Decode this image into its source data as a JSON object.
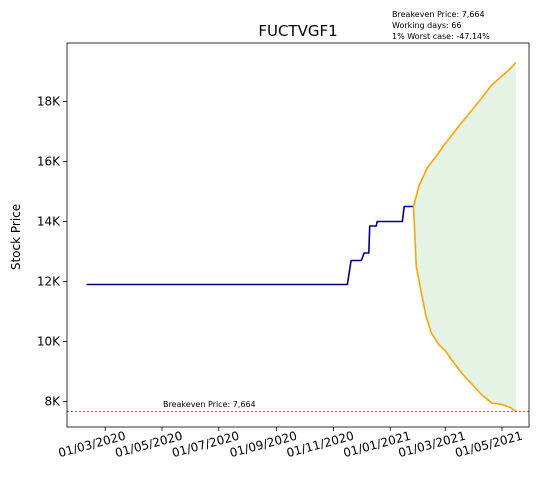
{
  "chart_data": {
    "type": "line",
    "title": "FUCTVGF1",
    "xlabel": "",
    "ylabel": "Stock Price",
    "x_ticks": [
      "01/03/2020",
      "01/05/2020",
      "01/07/2020",
      "01/09/2020",
      "01/11/2020",
      "01/01/2021",
      "01/03/2021",
      "01/05/2021"
    ],
    "y_ticks": [
      "8K",
      "10K",
      "12K",
      "14K",
      "16K",
      "18K"
    ],
    "y_tick_values": [
      8000,
      10000,
      12000,
      14000,
      16000,
      18000
    ],
    "xlim": [
      "2020-01-20",
      "2021-05-30"
    ],
    "ylim": [
      7150,
      19950
    ],
    "grid": false,
    "annotation_lines": [
      "Breakeven Price: 7,664",
      "Working days: 66",
      "1% Worst case: -47.14%"
    ],
    "breakeven": {
      "label": "Breakeven Price: 7,664",
      "value": 7664,
      "color": "#d62728"
    },
    "series": [
      {
        "color": "#000080",
        "points": [
          [
            "2020-02-10",
            11900
          ],
          [
            "2020-11-16",
            11900
          ],
          [
            "2020-11-20",
            12700
          ],
          [
            "2020-12-01",
            12700
          ],
          [
            "2020-12-04",
            12950
          ],
          [
            "2020-12-09",
            12950
          ],
          [
            "2020-12-10",
            13850
          ],
          [
            "2020-12-17",
            13850
          ],
          [
            "2020-12-18",
            14000
          ],
          [
            "2021-01-14",
            14000
          ],
          [
            "2021-01-16",
            14500
          ],
          [
            "2021-01-26",
            14500
          ]
        ]
      },
      {
        "color": "#ffa500",
        "points": [
          [
            "2021-01-26",
            14500
          ],
          [
            "2021-02-01",
            15200
          ],
          [
            "2021-02-10",
            15800
          ],
          [
            "2021-02-20",
            16200
          ],
          [
            "2021-03-01",
            16600
          ],
          [
            "2021-03-10",
            16950
          ],
          [
            "2021-03-20",
            17350
          ],
          [
            "2021-04-01",
            17800
          ],
          [
            "2021-04-10",
            18150
          ],
          [
            "2021-04-20",
            18550
          ],
          [
            "2021-05-01",
            18850
          ],
          [
            "2021-05-10",
            19100
          ],
          [
            "2021-05-16",
            19300
          ]
        ]
      },
      {
        "color": "#ffa500",
        "points": [
          [
            "2021-01-26",
            14500
          ],
          [
            "2021-01-29",
            12500
          ],
          [
            "2021-02-03",
            11700
          ],
          [
            "2021-02-08",
            10900
          ],
          [
            "2021-02-14",
            10300
          ],
          [
            "2021-02-22",
            9900
          ],
          [
            "2021-03-01",
            9700
          ],
          [
            "2021-03-10",
            9300
          ],
          [
            "2021-03-20",
            8900
          ],
          [
            "2021-04-01",
            8500
          ],
          [
            "2021-04-10",
            8200
          ],
          [
            "2021-04-20",
            7950
          ],
          [
            "2021-05-01",
            7900
          ],
          [
            "2021-05-10",
            7800
          ],
          [
            "2021-05-16",
            7664
          ]
        ]
      }
    ],
    "fill_between": {
      "color": "#2ca02c",
      "opacity": 0.12,
      "upper_series": 1,
      "lower_series": 2
    }
  }
}
